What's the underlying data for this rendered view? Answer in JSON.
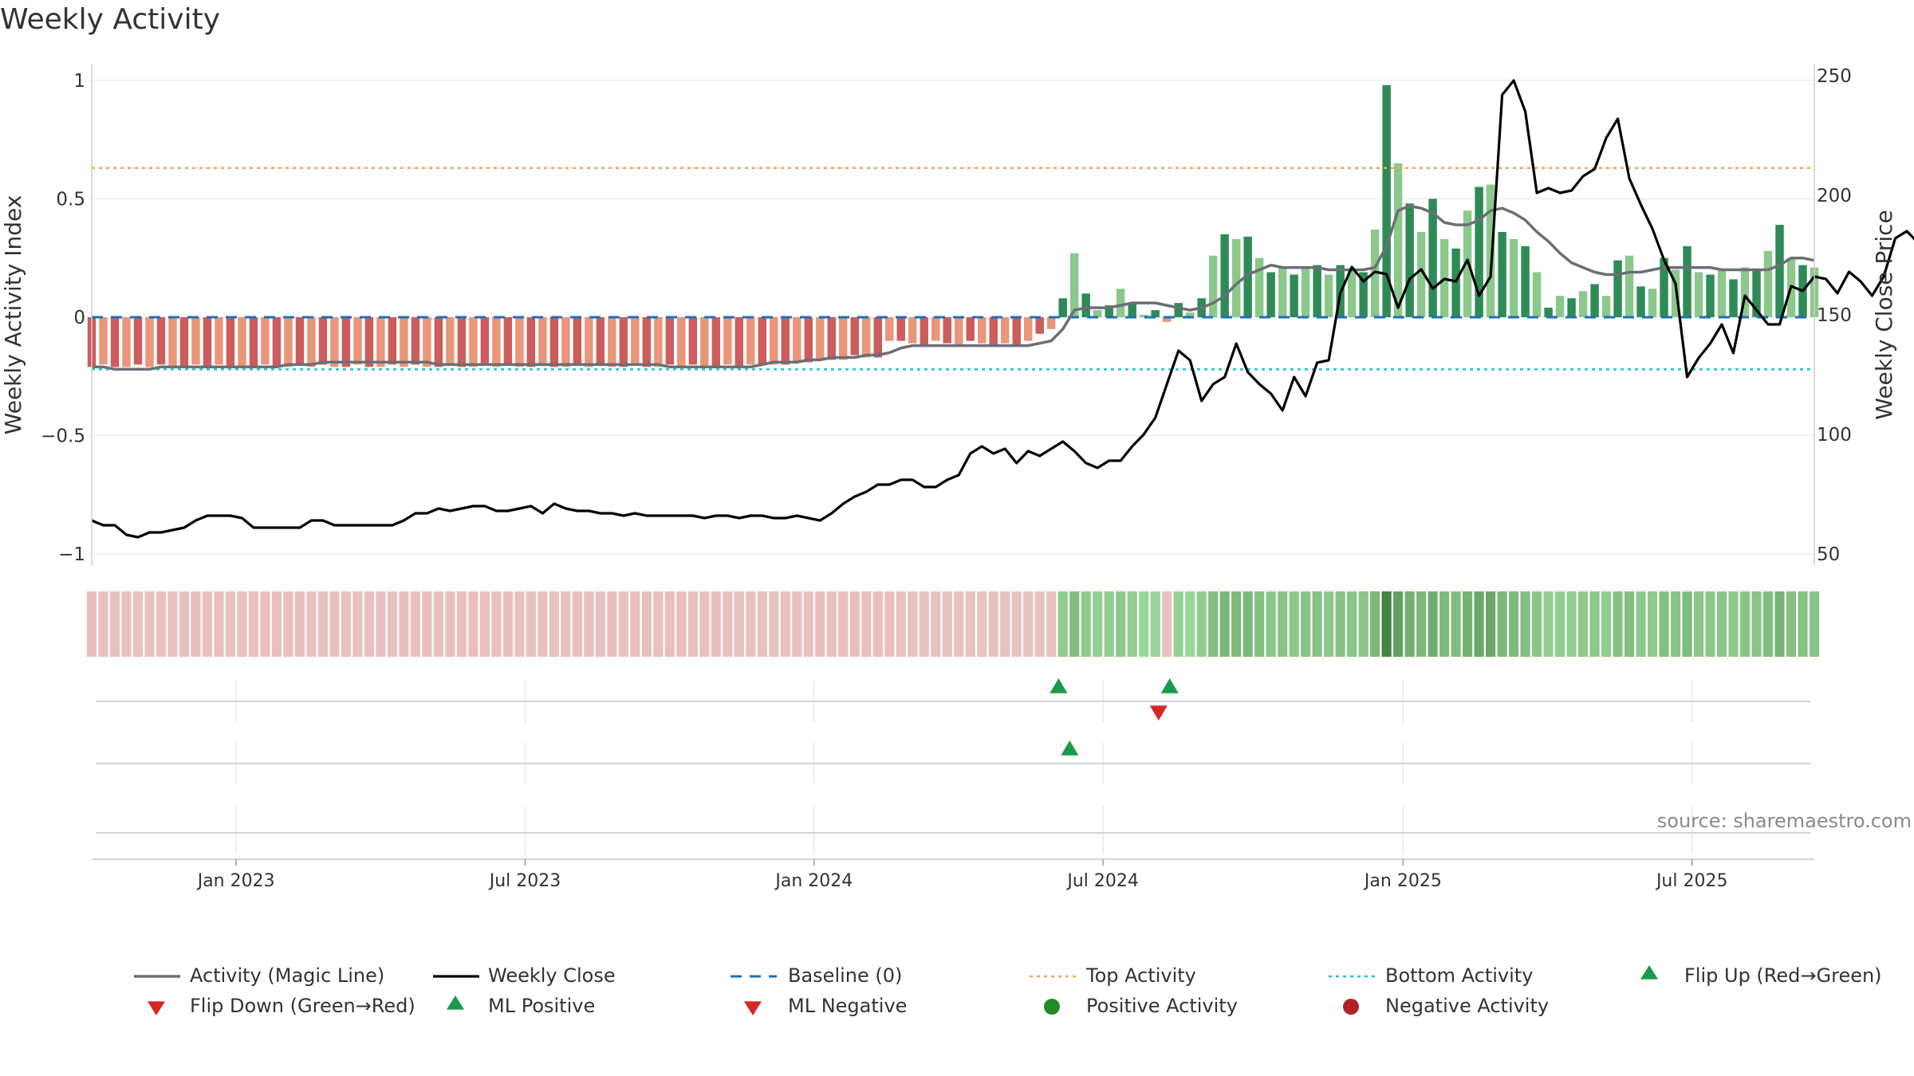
{
  "chart_data": {
    "type": "bar",
    "title": "Weekly Activity",
    "source": "source: sharemaestro.com",
    "ylabel_left": "Weekly Activity Index",
    "ylabel_right": "Weekly Close Price",
    "ylim_left": [
      -1.05,
      1.07
    ],
    "ylim_right": [
      45,
      255
    ],
    "yticks_left": [
      {
        "value": 1,
        "label": "1"
      },
      {
        "value": 0.5,
        "label": "0.5"
      },
      {
        "value": 0,
        "label": "0"
      },
      {
        "value": -0.5,
        "label": "−0.5"
      },
      {
        "value": -1,
        "label": "−1"
      }
    ],
    "yticks_right": [
      {
        "value": 250,
        "label": "250"
      },
      {
        "value": 200,
        "label": "200"
      },
      {
        "value": 150,
        "label": "150"
      },
      {
        "value": 100,
        "label": "100"
      },
      {
        "value": 50,
        "label": "50"
      }
    ],
    "x_start": "2022-10-03",
    "x_end": "2025-09-22",
    "xticks": [
      {
        "date": "2023-01-02",
        "label": "Jan 2023"
      },
      {
        "date": "2023-07-03",
        "label": "Jul 2023"
      },
      {
        "date": "2024-01-01",
        "label": "Jan 2024"
      },
      {
        "date": "2024-07-01",
        "label": "Jul 2024"
      },
      {
        "date": "2025-01-06",
        "label": "Jan 2025"
      },
      {
        "date": "2025-07-07",
        "label": "Jul 2025"
      }
    ],
    "top_activity": 0.63,
    "bottom_activity": -0.22,
    "baseline": 0,
    "activity": [
      -0.21,
      -0.2,
      -0.21,
      -0.21,
      -0.2,
      -0.21,
      -0.2,
      -0.21,
      -0.21,
      -0.2,
      -0.21,
      -0.2,
      -0.21,
      -0.21,
      -0.21,
      -0.2,
      -0.21,
      -0.21,
      -0.2,
      -0.21,
      -0.2,
      -0.21,
      -0.21,
      -0.2,
      -0.21,
      -0.21,
      -0.2,
      -0.21,
      -0.2,
      -0.21,
      -0.21,
      -0.2,
      -0.21,
      -0.21,
      -0.2,
      -0.21,
      -0.2,
      -0.21,
      -0.21,
      -0.2,
      -0.21,
      -0.21,
      -0.2,
      -0.21,
      -0.2,
      -0.21,
      -0.21,
      -0.2,
      -0.21,
      -0.21,
      -0.2,
      -0.21,
      -0.2,
      -0.21,
      -0.21,
      -0.2,
      -0.21,
      -0.2,
      -0.2,
      -0.2,
      -0.2,
      -0.19,
      -0.19,
      -0.18,
      -0.18,
      -0.18,
      -0.16,
      -0.17,
      -0.17,
      -0.1,
      -0.1,
      -0.11,
      -0.12,
      -0.1,
      -0.11,
      -0.12,
      -0.1,
      -0.11,
      -0.12,
      -0.11,
      -0.12,
      -0.1,
      -0.07,
      -0.05,
      0.08,
      0.27,
      0.1,
      0.03,
      0.05,
      0.12,
      0.06,
      0.01,
      0.03,
      -0.02,
      0.06,
      0.02,
      0.08,
      0.26,
      0.35,
      0.33,
      0.34,
      0.25,
      0.19,
      0.21,
      0.18,
      0.21,
      0.22,
      0.18,
      0.22,
      0.2,
      0.19,
      0.37,
      0.98,
      0.65,
      0.48,
      0.36,
      0.5,
      0.33,
      0.29,
      0.45,
      0.55,
      0.56,
      0.36,
      0.33,
      0.3,
      0.19,
      0.04,
      0.09,
      0.08,
      0.11,
      0.14,
      0.09,
      0.24,
      0.26,
      0.13,
      0.12,
      0.25,
      0.2,
      0.3,
      0.19,
      0.18,
      0.2,
      0.16,
      0.21,
      0.2,
      0.28,
      0.39,
      0.25,
      0.22,
      0.21
    ],
    "magic_line": [
      -0.21,
      -0.21,
      -0.22,
      -0.22,
      -0.22,
      -0.22,
      -0.21,
      -0.21,
      -0.21,
      -0.21,
      -0.21,
      -0.21,
      -0.21,
      -0.21,
      -0.21,
      -0.21,
      -0.21,
      -0.2,
      -0.2,
      -0.2,
      -0.19,
      -0.19,
      -0.19,
      -0.19,
      -0.19,
      -0.19,
      -0.19,
      -0.19,
      -0.19,
      -0.19,
      -0.2,
      -0.2,
      -0.2,
      -0.2,
      -0.2,
      -0.2,
      -0.2,
      -0.2,
      -0.2,
      -0.2,
      -0.2,
      -0.2,
      -0.2,
      -0.2,
      -0.2,
      -0.2,
      -0.2,
      -0.2,
      -0.2,
      -0.2,
      -0.21,
      -0.21,
      -0.21,
      -0.21,
      -0.21,
      -0.21,
      -0.21,
      -0.21,
      -0.2,
      -0.19,
      -0.19,
      -0.19,
      -0.18,
      -0.18,
      -0.17,
      -0.17,
      -0.17,
      -0.16,
      -0.16,
      -0.15,
      -0.13,
      -0.12,
      -0.12,
      -0.12,
      -0.12,
      -0.12,
      -0.12,
      -0.12,
      -0.12,
      -0.12,
      -0.12,
      -0.12,
      -0.11,
      -0.1,
      -0.05,
      0.03,
      0.04,
      0.04,
      0.04,
      0.05,
      0.06,
      0.06,
      0.06,
      0.05,
      0.04,
      0.03,
      0.04,
      0.06,
      0.09,
      0.14,
      0.18,
      0.2,
      0.22,
      0.21,
      0.21,
      0.21,
      0.21,
      0.2,
      0.2,
      0.2,
      0.2,
      0.21,
      0.3,
      0.45,
      0.47,
      0.46,
      0.44,
      0.4,
      0.39,
      0.39,
      0.41,
      0.45,
      0.46,
      0.44,
      0.41,
      0.36,
      0.32,
      0.27,
      0.23,
      0.21,
      0.19,
      0.18,
      0.18,
      0.19,
      0.19,
      0.2,
      0.21,
      0.21,
      0.21,
      0.21,
      0.21,
      0.2,
      0.2,
      0.2,
      0.2,
      0.2,
      0.22,
      0.25,
      0.25,
      0.24
    ],
    "weekly_close": [
      64,
      62,
      62,
      58,
      57,
      59,
      59,
      60,
      61,
      64,
      66,
      66,
      66,
      65,
      61,
      61,
      61,
      61,
      61,
      64,
      64,
      62,
      62,
      62,
      62,
      62,
      62,
      64,
      67,
      67,
      69,
      68,
      69,
      70,
      70,
      68,
      68,
      69,
      70,
      67,
      71,
      69,
      68,
      68,
      67,
      67,
      66,
      67,
      66,
      66,
      66,
      66,
      66,
      65,
      66,
      66,
      65,
      66,
      66,
      65,
      65,
      66,
      65,
      64,
      67,
      71,
      74,
      76,
      79,
      79,
      81,
      81,
      78,
      78,
      81,
      83,
      92,
      95,
      92,
      94,
      88,
      93,
      91,
      94,
      97,
      93,
      88,
      86,
      89,
      89,
      95,
      100,
      107,
      121,
      135,
      131,
      114,
      121,
      124,
      138,
      126,
      121,
      117,
      110,
      124,
      116,
      130,
      131,
      159,
      170,
      164,
      168,
      167,
      153,
      165,
      169,
      161,
      165,
      164,
      173,
      158,
      166,
      242,
      248,
      235,
      201,
      203,
      201,
      202,
      208,
      211,
      224,
      232,
      207,
      196,
      186,
      173,
      163,
      124,
      132,
      138,
      146,
      134,
      158,
      152,
      146,
      146,
      162,
      160,
      166,
      165,
      159,
      168,
      164,
      158,
      166,
      182,
      185,
      180,
      176,
      175
    ],
    "heat_intensity": [
      0.4,
      0.4,
      0.4,
      0.4,
      0.4,
      0.4,
      0.4,
      0.4,
      0.4,
      0.4,
      0.4,
      0.4,
      0.4,
      0.4,
      0.4,
      0.4,
      0.4,
      0.4,
      0.4,
      0.4,
      0.4,
      0.4,
      0.4,
      0.4,
      0.4,
      0.4,
      0.4,
      0.4,
      0.4,
      0.4,
      0.4,
      0.4,
      0.4,
      0.4,
      0.4,
      0.4,
      0.4,
      0.4,
      0.4,
      0.4,
      0.4,
      0.4,
      0.4,
      0.4,
      0.4,
      0.4,
      0.4,
      0.4,
      0.4,
      0.4,
      0.4,
      0.4,
      0.4,
      0.4,
      0.4,
      0.4,
      0.4,
      0.4,
      0.4,
      0.4,
      0.4,
      0.4,
      0.4,
      0.4,
      0.4,
      0.4,
      0.4,
      0.4,
      0.4,
      0.38,
      0.37,
      0.36,
      0.35,
      0.36,
      0.35,
      0.34,
      0.35,
      0.34,
      0.33,
      0.34,
      0.33,
      0.32,
      0.3,
      0.28,
      0.38,
      0.5,
      0.4,
      0.35,
      0.36,
      0.41,
      0.37,
      0.3,
      0.32,
      0.28,
      0.34,
      0.3,
      0.38,
      0.5,
      0.55,
      0.53,
      0.54,
      0.48,
      0.43,
      0.45,
      0.42,
      0.45,
      0.46,
      0.42,
      0.46,
      0.44,
      0.43,
      0.55,
      1.0,
      0.75,
      0.62,
      0.55,
      0.65,
      0.53,
      0.5,
      0.6,
      0.68,
      0.7,
      0.55,
      0.53,
      0.5,
      0.43,
      0.35,
      0.38,
      0.37,
      0.4,
      0.42,
      0.38,
      0.48,
      0.5,
      0.41,
      0.4,
      0.48,
      0.45,
      0.52,
      0.43,
      0.42,
      0.44,
      0.41,
      0.45,
      0.44,
      0.5,
      0.58,
      0.48,
      0.46,
      0.45
    ],
    "signals": {
      "flip_up_dates": [
        "2024-06-03",
        "2024-08-12"
      ],
      "flip_down_dates": [
        "2024-08-05"
      ],
      "ml_positive_dates": [
        "2024-06-10"
      ],
      "ml_negative_dates": [],
      "positive_activity_dates": [],
      "negative_activity_dates": []
    },
    "legend": [
      {
        "key": "magic",
        "label": "Activity (Magic Line)"
      },
      {
        "key": "close",
        "label": "Weekly Close"
      },
      {
        "key": "baseline",
        "label": "Baseline (0)"
      },
      {
        "key": "top",
        "label": "Top Activity"
      },
      {
        "key": "bottom",
        "label": "Bottom Activity"
      },
      {
        "key": "flipup",
        "label": "Flip Up (Red→Green)"
      },
      {
        "key": "flipdown",
        "label": "Flip Down (Green→Red)"
      },
      {
        "key": "mlpos",
        "label": "ML Positive"
      },
      {
        "key": "mlneg",
        "label": "ML Negative"
      },
      {
        "key": "posact",
        "label": "Positive Activity"
      },
      {
        "key": "negact",
        "label": "Negative Activity"
      }
    ],
    "colors": {
      "pos_dark": "#2e8b57",
      "pos_light": "#8cc88c",
      "neg_dark": "#cd5c5c",
      "neg_light": "#e9967a",
      "magic_line": "#6b6f75",
      "close_line": "#000000",
      "baseline": "#1f6fb4",
      "top_line": "#f4a460",
      "bottom_line": "#20c0d8",
      "signal_green": "#1a9a4a",
      "signal_red": "#d62728",
      "pos_activity_dot": "#228b22",
      "neg_activity_dot": "#b22222"
    }
  }
}
